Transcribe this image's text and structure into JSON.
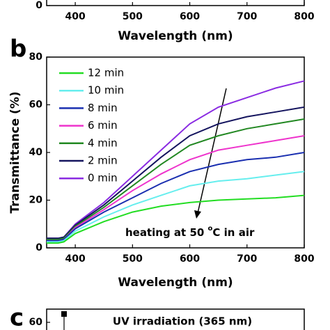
{
  "chart_data": [
    {
      "type": "line",
      "panel_label": "",
      "x_label": "Wavelength (nm)",
      "xlim": [
        350,
        800
      ],
      "xticks": [
        400,
        500,
        600,
        700,
        800
      ],
      "ylim": [
        0,
        80
      ],
      "yticks": [
        0
      ]
    },
    {
      "type": "line",
      "panel_label": "b",
      "x_label": "Wavelength (nm)",
      "y_label": "Transmittance (%)",
      "xlim": [
        350,
        800
      ],
      "xticks": [
        400,
        500,
        600,
        700,
        800
      ],
      "ylim": [
        0,
        80
      ],
      "yticks": [
        0,
        20,
        40,
        60,
        80
      ],
      "x": [
        350,
        370,
        380,
        400,
        450,
        500,
        550,
        600,
        650,
        700,
        750,
        800
      ],
      "series": [
        {
          "name": "12 min",
          "color": "#22dd22",
          "values": [
            2,
            2,
            2.5,
            6,
            11,
            15,
            17.5,
            19,
            20,
            20.5,
            21,
            22
          ]
        },
        {
          "name": "10 min",
          "color": "#66eeee",
          "values": [
            2.5,
            2.5,
            3,
            7,
            13,
            18,
            22,
            26,
            28,
            29,
            30.5,
            32
          ]
        },
        {
          "name": "8 min",
          "color": "#1a2fb0",
          "values": [
            3,
            3,
            3.5,
            8,
            15,
            21,
            27,
            32,
            35,
            37,
            38,
            40
          ]
        },
        {
          "name": "6 min",
          "color": "#ee33cc",
          "values": [
            3,
            3,
            3.5,
            8.5,
            16,
            24,
            31,
            37,
            41,
            43,
            45,
            47
          ]
        },
        {
          "name": "4 min",
          "color": "#228822",
          "values": [
            3.5,
            3.5,
            4,
            9,
            17,
            26,
            35,
            43,
            47,
            50,
            52,
            54
          ]
        },
        {
          "name": "2 min",
          "color": "#14145e",
          "values": [
            4,
            4,
            4.5,
            9.5,
            18,
            28,
            38,
            47,
            52,
            55,
            57,
            59
          ]
        },
        {
          "name": "0 min",
          "color": "#8a2be2",
          "values": [
            4,
            4,
            4.5,
            10,
            19,
            30,
            41,
            52,
            59,
            63,
            67,
            70
          ]
        }
      ],
      "annotation": {
        "before": "heating at 50 ",
        "superscript": "o",
        "after": "C in air"
      }
    },
    {
      "type": "scatter",
      "panel_label": "c",
      "title": "UV irradiation (365 nm)",
      "ylim": [
        0,
        70
      ],
      "yticks": [
        60
      ]
    }
  ]
}
